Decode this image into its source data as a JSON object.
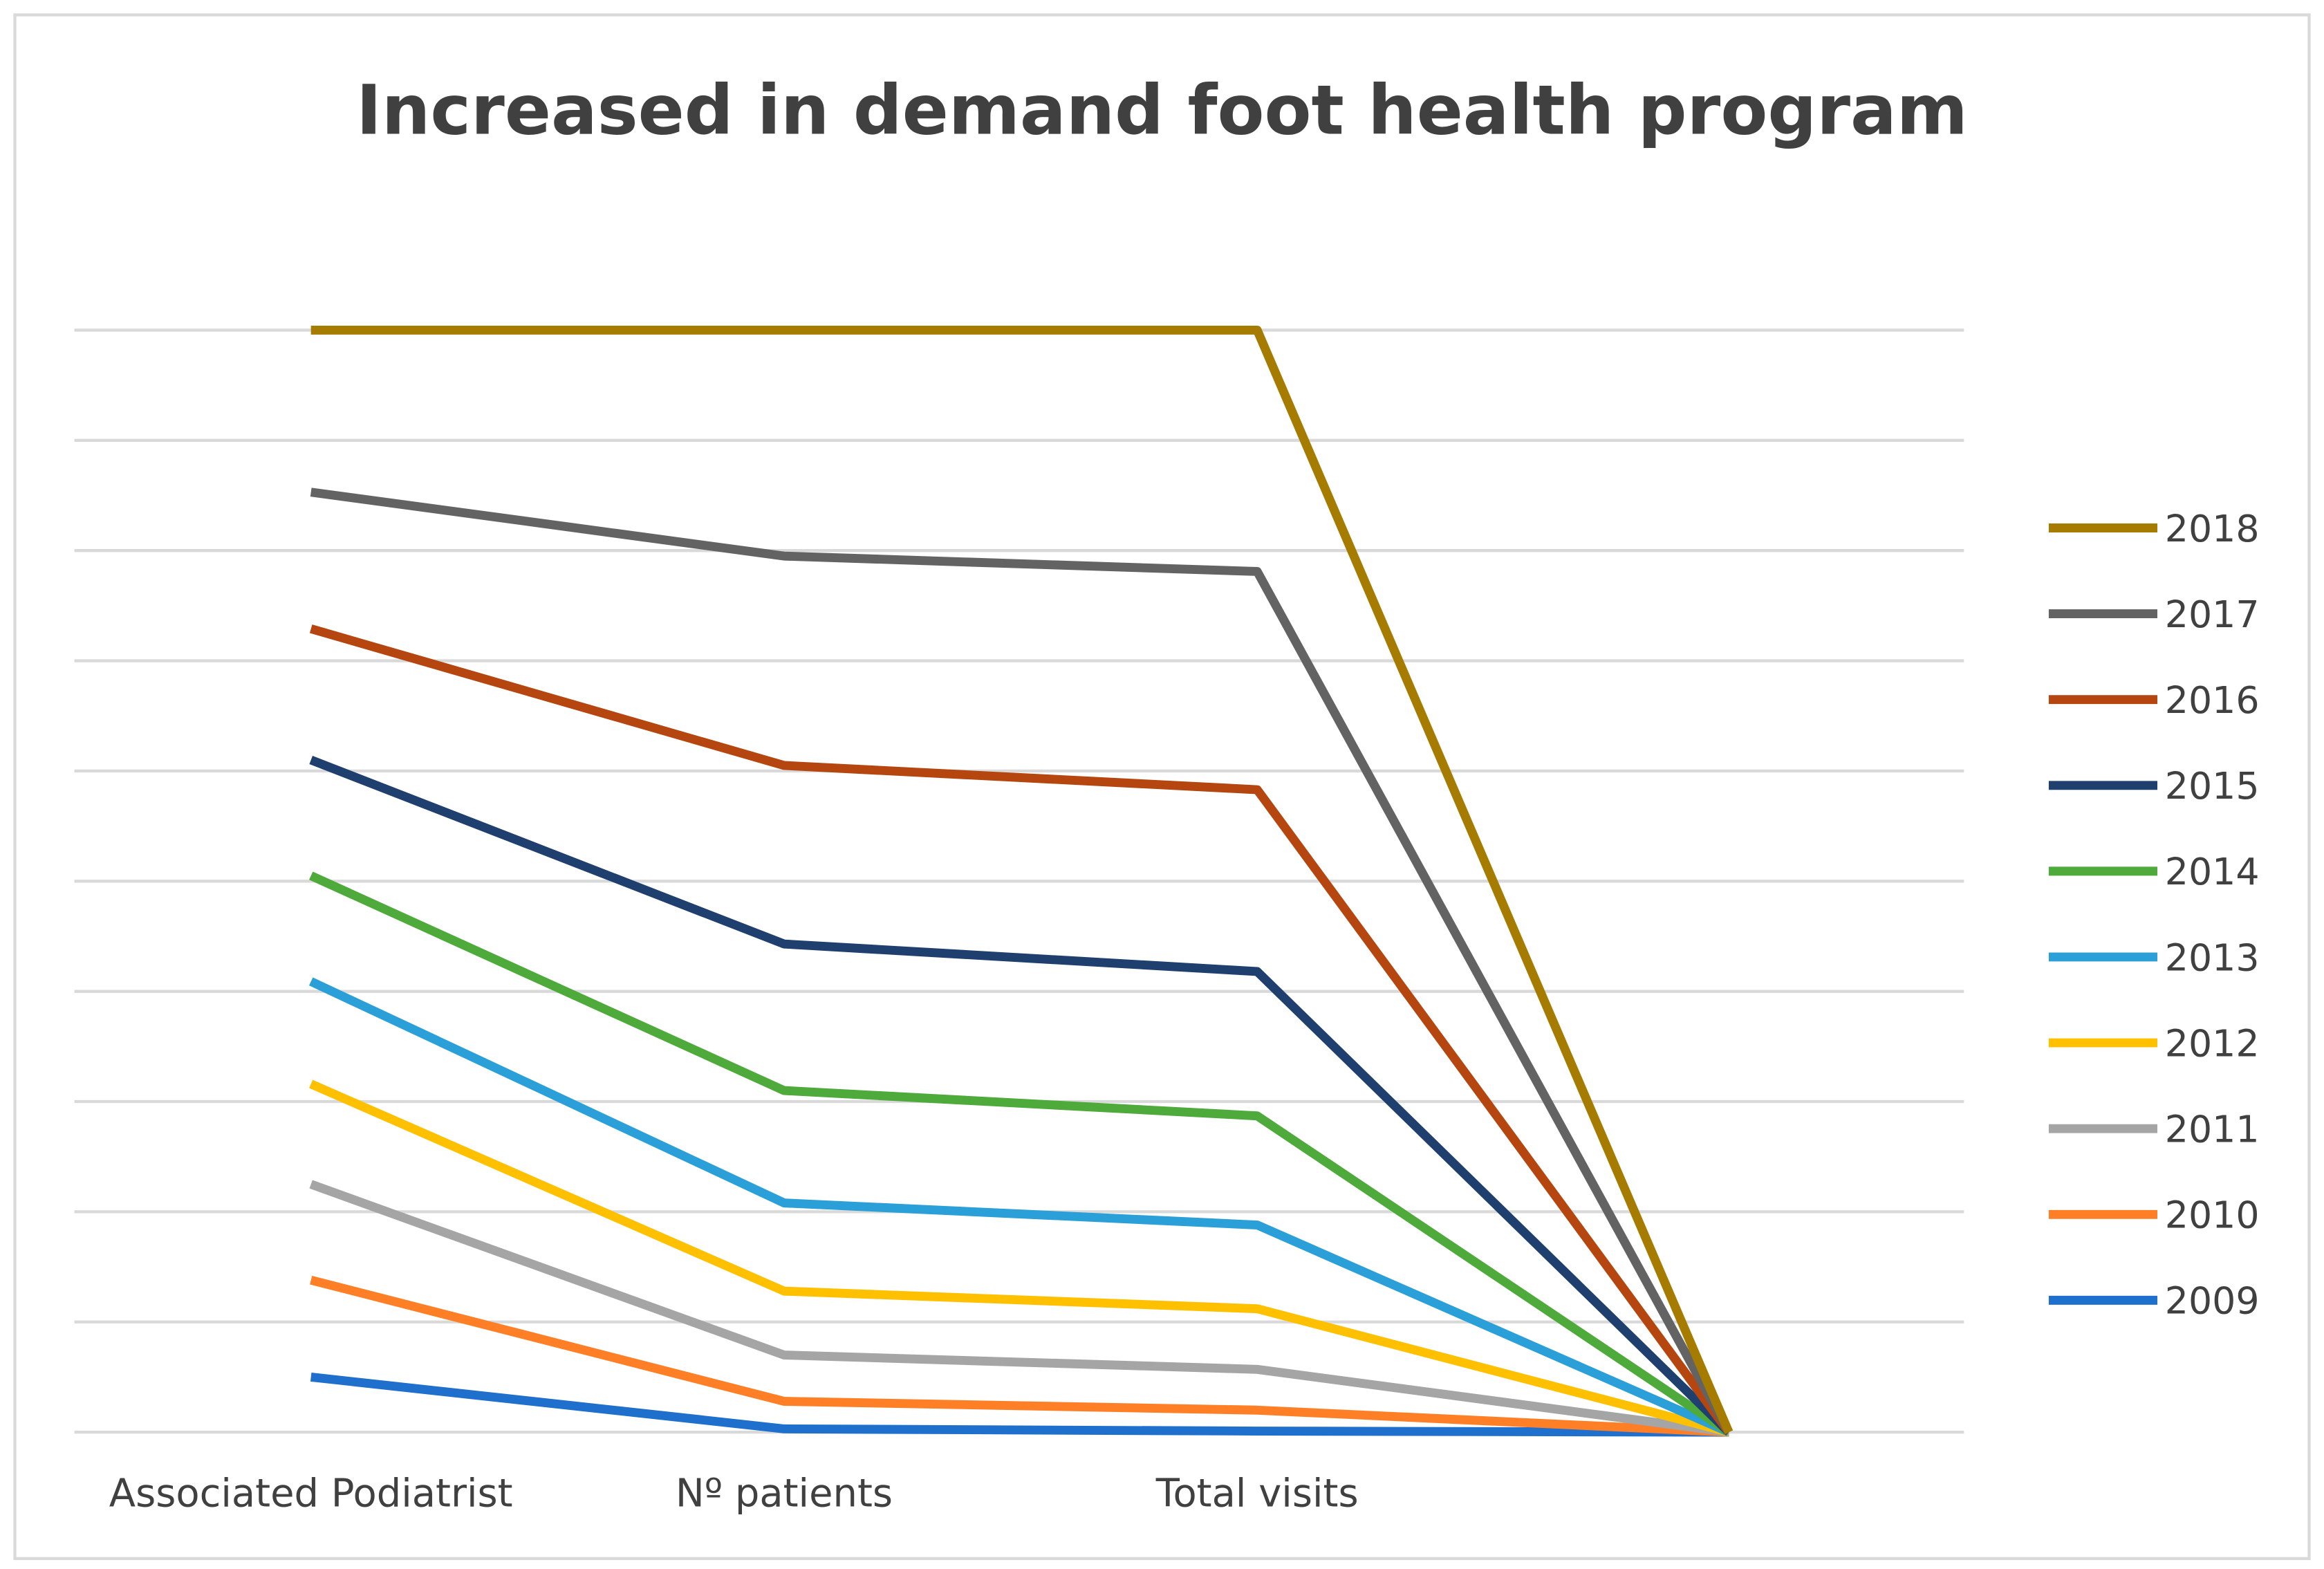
{
  "chart_data": {
    "type": "line",
    "title": "Increased in demand foot health program",
    "categories": [
      "Associated Podiatrist",
      "Nº patients",
      "Total visits",
      ""
    ],
    "xlabel": "",
    "ylabel": "",
    "ylim": [
      0,
      10
    ],
    "grid": true,
    "y_tick_labels_shown": false,
    "legend_position": "right",
    "series": [
      {
        "name": "2018",
        "color": "#A67C00",
        "values": [
          10,
          10,
          10,
          0
        ]
      },
      {
        "name": "2017",
        "color": "#636363",
        "values": [
          8.53,
          7.95,
          7.81,
          0
        ]
      },
      {
        "name": "2016",
        "color": "#B5460F",
        "values": [
          7.29,
          6.05,
          5.83,
          0
        ]
      },
      {
        "name": "2015",
        "color": "#1F3F6E",
        "values": [
          6.1,
          4.43,
          4.18,
          0
        ]
      },
      {
        "name": "2014",
        "color": "#4EAA3A",
        "values": [
          5.05,
          3.1,
          2.87,
          0
        ]
      },
      {
        "name": "2013",
        "color": "#2A9FD8",
        "values": [
          4.09,
          2.08,
          1.88,
          0
        ]
      },
      {
        "name": "2012",
        "color": "#FFC000",
        "values": [
          3.16,
          1.28,
          1.12,
          0
        ]
      },
      {
        "name": "2011",
        "color": "#A5A5A5",
        "values": [
          2.25,
          0.7,
          0.57,
          0
        ]
      },
      {
        "name": "2010",
        "color": "#FF7F27",
        "values": [
          1.38,
          0.28,
          0.2,
          0
        ]
      },
      {
        "name": "2009",
        "color": "#1F6FCC",
        "values": [
          0.5,
          0.03,
          0.01,
          0
        ]
      }
    ]
  }
}
